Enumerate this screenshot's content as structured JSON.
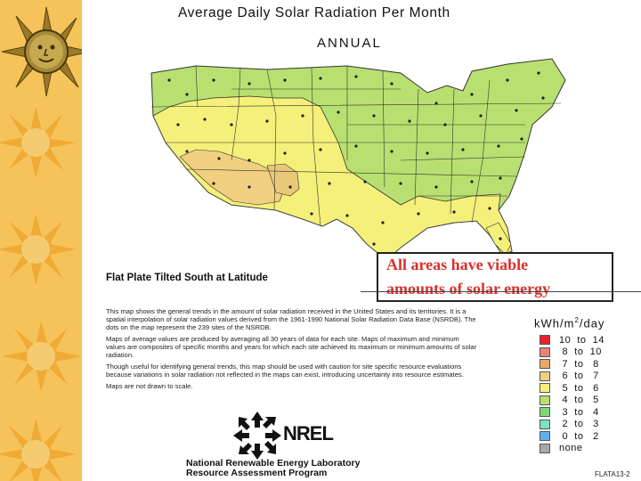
{
  "title": "Average Daily Solar Radiation Per Month",
  "subtitle": "ANNUAL",
  "plate_label": "Flat Plate Tilted South at Latitude",
  "callout": {
    "line1": "All areas have viable",
    "line2": "amounts of solar energy",
    "color": "#d9312d"
  },
  "description": [
    "This map shows the general trends in the amount of solar radiation received in the United States and its territories. It is a spatial interpolation of solar radiation values derived from the 1961-1990 National Solar Radiation Data Base (NSRDB). The dots on the map represent the 239 sites of the NSRDB.",
    "Maps of average values are produced by averaging all 30 years of data for each site. Maps of maximum and minimum values are composites of specific months and years for which each site achieved its maximum or minimum amounts of solar radiation.",
    "Though useful for identifying general trends, this map should be used with caution for site specific resource evaluations because variations in solar radiation not reflected in the maps can exist, introducing uncertainty into resource estimates.",
    "Maps are not drawn to scale."
  ],
  "legend": {
    "unit": "kWh/m",
    "unit_sup": "2",
    "unit_suffix": "/day",
    "items": [
      {
        "range": "10  to  14",
        "color": "#e8202a"
      },
      {
        "range": " 8  to  10",
        "color": "#e8827a"
      },
      {
        "range": " 7  to   8",
        "color": "#e9a86a"
      },
      {
        "range": " 6  to   7",
        "color": "#f0d080"
      },
      {
        "range": " 5  to   6",
        "color": "#f4f07a"
      },
      {
        "range": " 4  to   5",
        "color": "#b8e070"
      },
      {
        "range": " 3  to   4",
        "color": "#7ed87a"
      },
      {
        "range": " 2  to   3",
        "color": "#7ee0c8"
      },
      {
        "range": " 0  to   2",
        "color": "#60b0e8"
      }
    ],
    "none_label": "none",
    "none_color": "#a8a8a8"
  },
  "logo_text": "NREL",
  "lab_line1": "National Renewable Energy Laboratory",
  "lab_line2": "Resource Assessment Program",
  "figure_id": "FLATA13-2"
}
